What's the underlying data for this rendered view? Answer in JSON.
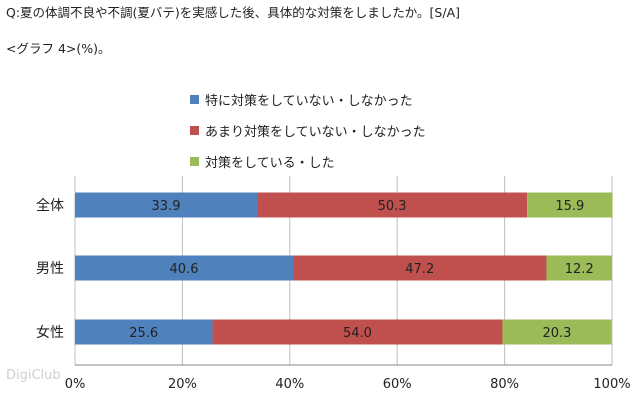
{
  "question": "Q:夏の体調不良や不調(夏バテ)を実感した後、具体的な対策をしましたか。[S/A]",
  "graph_label": "<グラフ 4>(%)。",
  "watermark": "DigiClub",
  "colors": {
    "series_1": "#4F81BD",
    "series_2": "#C0504D",
    "series_3": "#9BBB59"
  },
  "chart_data": {
    "type": "bar",
    "orientation": "horizontal-stacked-100",
    "categories": [
      "全体",
      "男性",
      "女性"
    ],
    "series": [
      {
        "name": "特に対策をしていない・しなかった",
        "values": [
          33.9,
          40.6,
          25.6
        ]
      },
      {
        "name": "あまり対策をしていない・しなかった",
        "values": [
          50.3,
          47.2,
          54.0
        ]
      },
      {
        "name": "対策をしている・した",
        "values": [
          15.9,
          12.2,
          20.3
        ]
      }
    ],
    "value_labels": [
      [
        "33.9",
        "40.6",
        "25.6"
      ],
      [
        "50.3",
        "47.2",
        "54.0"
      ],
      [
        "15.9",
        "12.2",
        "20.3"
      ]
    ],
    "xlim": [
      0,
      100
    ],
    "xticks": [
      "0%",
      "20%",
      "40%",
      "60%",
      "80%",
      "100%"
    ],
    "xgrid": true,
    "legend_position": "top"
  }
}
